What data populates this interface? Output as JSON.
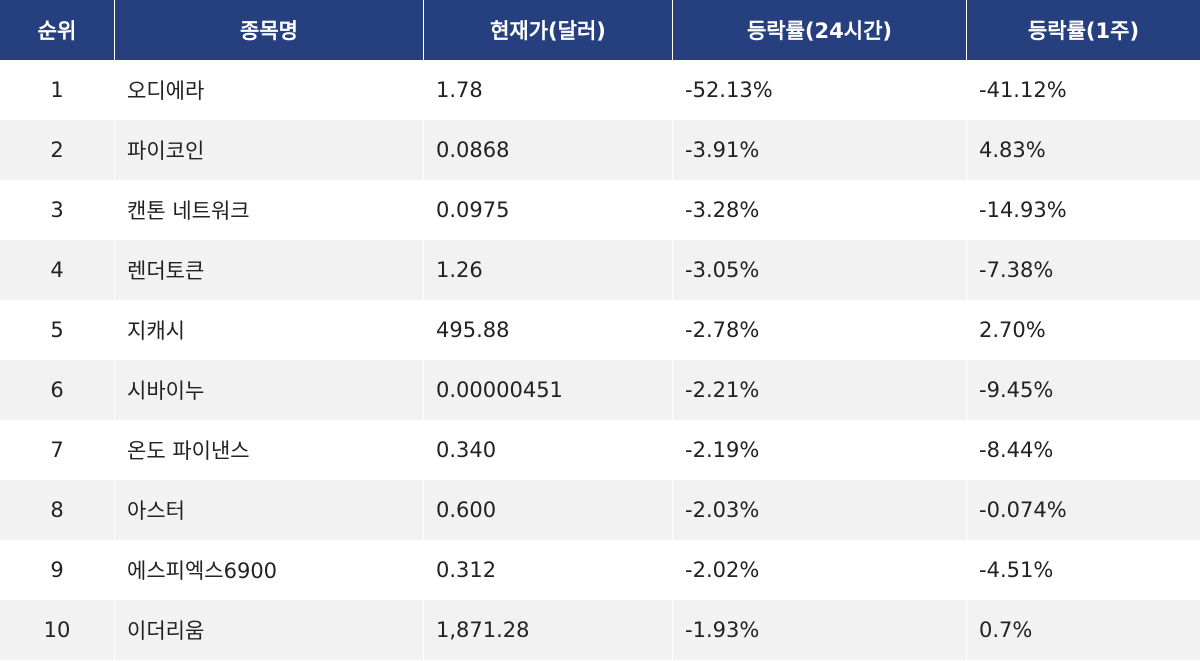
{
  "header": {
    "rank": "순위",
    "name": "종목명",
    "price": "현재가(달러)",
    "change_24h": "등락률(24시간)",
    "change_1w": "등락률(1주)"
  },
  "rows": [
    {
      "rank": "1",
      "name": "오디에라",
      "price": "1.78",
      "change_24h": "-52.13%",
      "change_1w": "-41.12%"
    },
    {
      "rank": "2",
      "name": "파이코인",
      "price": "0.0868",
      "change_24h": "-3.91%",
      "change_1w": "4.83%"
    },
    {
      "rank": "3",
      "name": "캔톤 네트워크",
      "price": "0.0975",
      "change_24h": "-3.28%",
      "change_1w": "-14.93%"
    },
    {
      "rank": "4",
      "name": "렌더토큰",
      "price": "1.26",
      "change_24h": "-3.05%",
      "change_1w": "-7.38%"
    },
    {
      "rank": "5",
      "name": "지캐시",
      "price": "495.88",
      "change_24h": "-2.78%",
      "change_1w": "2.70%"
    },
    {
      "rank": "6",
      "name": "시바이누",
      "price": "0.00000451",
      "change_24h": "-2.21%",
      "change_1w": "-9.45%"
    },
    {
      "rank": "7",
      "name": "온도 파이낸스",
      "price": "0.340",
      "change_24h": "-2.19%",
      "change_1w": "-8.44%"
    },
    {
      "rank": "8",
      "name": "아스터",
      "price": "0.600",
      "change_24h": "-2.03%",
      "change_1w": "-0.074%"
    },
    {
      "rank": "9",
      "name": "에스피엑스6900",
      "price": "0.312",
      "change_24h": "-2.02%",
      "change_1w": "-4.51%"
    },
    {
      "rank": "10",
      "name": "이더리움",
      "price": "1,871.28",
      "change_24h": "-1.93%",
      "change_1w": "0.7%"
    }
  ],
  "colors": {
    "header_bg": "#26407f",
    "header_text": "#ffffff",
    "row_alt_bg": "#f2f2f2"
  }
}
